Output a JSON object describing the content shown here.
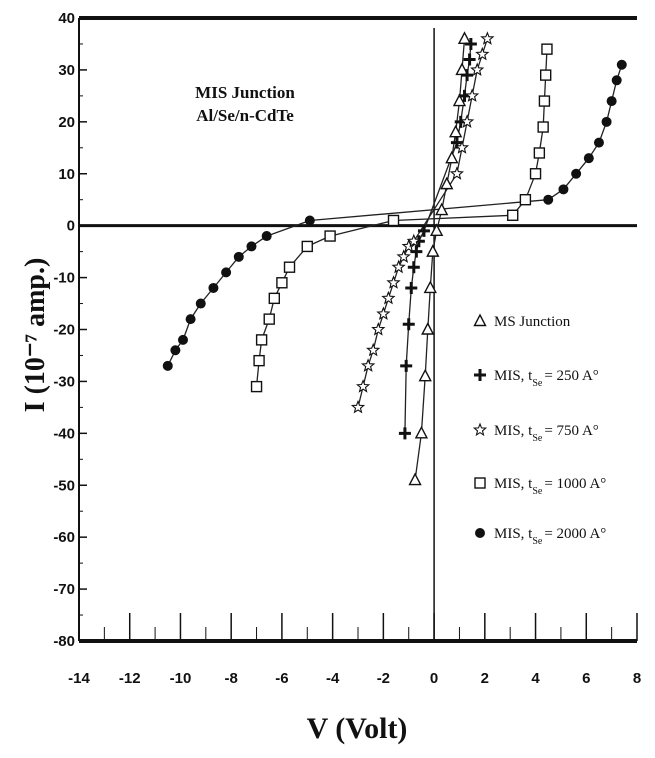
{
  "chart_data": {
    "type": "scatter",
    "xlabel": "V (Volt)",
    "ylabel": "I (10⁻⁷ amp.)",
    "xlim": [
      -14,
      8
    ],
    "ylim": [
      -80,
      40
    ],
    "xticks": [
      "-14",
      "-12",
      "-10",
      "-8",
      "-6",
      "-4",
      "-2",
      "0",
      "2",
      "4",
      "6",
      "8"
    ],
    "yticks": [
      "40",
      "30",
      "20",
      "10",
      "0",
      "-10",
      "-20",
      "-30",
      "-40",
      "-50",
      "-60",
      "-70",
      "-80"
    ],
    "annotation_lines": [
      "MIS Junction",
      "Al/Se/n-CdTe"
    ],
    "legend_position": "right",
    "series": [
      {
        "name": "MS Junction",
        "marker": "triangle",
        "label_sub": "",
        "label_tail": "",
        "points": [
          [
            -0.75,
            -49
          ],
          [
            -0.5,
            -40
          ],
          [
            -0.35,
            -29
          ],
          [
            -0.25,
            -20
          ],
          [
            -0.15,
            -12
          ],
          [
            -0.05,
            -5
          ],
          [
            0.1,
            -1
          ],
          [
            0.3,
            3
          ],
          [
            0.5,
            8
          ],
          [
            0.7,
            13
          ],
          [
            0.85,
            18
          ],
          [
            1.0,
            24
          ],
          [
            1.1,
            30
          ],
          [
            1.2,
            36
          ]
        ]
      },
      {
        "name": "MIS, t",
        "marker": "plus",
        "label_sub": "Se",
        "label_tail": "= 250 A°",
        "points": [
          [
            -1.15,
            -40
          ],
          [
            -1.1,
            -27
          ],
          [
            -1.0,
            -19
          ],
          [
            -0.9,
            -12
          ],
          [
            -0.8,
            -8
          ],
          [
            -0.7,
            -5
          ],
          [
            -0.6,
            -3
          ],
          [
            -0.4,
            -1
          ],
          [
            0.9,
            16
          ],
          [
            1.05,
            20
          ],
          [
            1.2,
            25
          ],
          [
            1.3,
            29
          ],
          [
            1.4,
            32
          ],
          [
            1.45,
            35
          ]
        ]
      },
      {
        "name": "MIS, t",
        "marker": "star",
        "label_sub": "Se",
        "label_tail": "= 750 A°",
        "points": [
          [
            -3.0,
            -35
          ],
          [
            -2.8,
            -31
          ],
          [
            -2.6,
            -27
          ],
          [
            -2.4,
            -24
          ],
          [
            -2.2,
            -20
          ],
          [
            -2.0,
            -17
          ],
          [
            -1.8,
            -14
          ],
          [
            -1.6,
            -11
          ],
          [
            -1.4,
            -8
          ],
          [
            -1.2,
            -6
          ],
          [
            -1.0,
            -4
          ],
          [
            -0.8,
            -3
          ],
          [
            0.9,
            10
          ],
          [
            1.1,
            15
          ],
          [
            1.3,
            20
          ],
          [
            1.5,
            25
          ],
          [
            1.7,
            30
          ],
          [
            1.9,
            33
          ],
          [
            2.1,
            36
          ]
        ]
      },
      {
        "name": "MIS, t",
        "marker": "square",
        "label_sub": "Se",
        "label_tail": "= 1000 A°",
        "points": [
          [
            -7.0,
            -31
          ],
          [
            -6.9,
            -26
          ],
          [
            -6.8,
            -22
          ],
          [
            -6.5,
            -18
          ],
          [
            -6.3,
            -14
          ],
          [
            -6.0,
            -11
          ],
          [
            -5.7,
            -8
          ],
          [
            -5.0,
            -4
          ],
          [
            -4.1,
            -2
          ],
          [
            -1.6,
            1
          ],
          [
            3.1,
            2
          ],
          [
            3.6,
            5
          ],
          [
            4.0,
            10
          ],
          [
            4.15,
            14
          ],
          [
            4.3,
            19
          ],
          [
            4.35,
            24
          ],
          [
            4.4,
            29
          ],
          [
            4.45,
            34
          ]
        ]
      },
      {
        "name": "MIS, t",
        "marker": "circle",
        "label_sub": "Se",
        "label_tail": "= 2000 A°",
        "points": [
          [
            -10.5,
            -27
          ],
          [
            -10.2,
            -24
          ],
          [
            -9.9,
            -22
          ],
          [
            -9.6,
            -18
          ],
          [
            -9.2,
            -15
          ],
          [
            -8.7,
            -12
          ],
          [
            -8.2,
            -9
          ],
          [
            -7.7,
            -6
          ],
          [
            -7.2,
            -4
          ],
          [
            -6.6,
            -2
          ],
          [
            -4.9,
            1
          ],
          [
            4.5,
            5
          ],
          [
            5.1,
            7
          ],
          [
            5.6,
            10
          ],
          [
            6.1,
            13
          ],
          [
            6.5,
            16
          ],
          [
            6.8,
            20
          ],
          [
            7.0,
            24
          ],
          [
            7.2,
            28
          ],
          [
            7.4,
            31
          ]
        ]
      }
    ]
  }
}
